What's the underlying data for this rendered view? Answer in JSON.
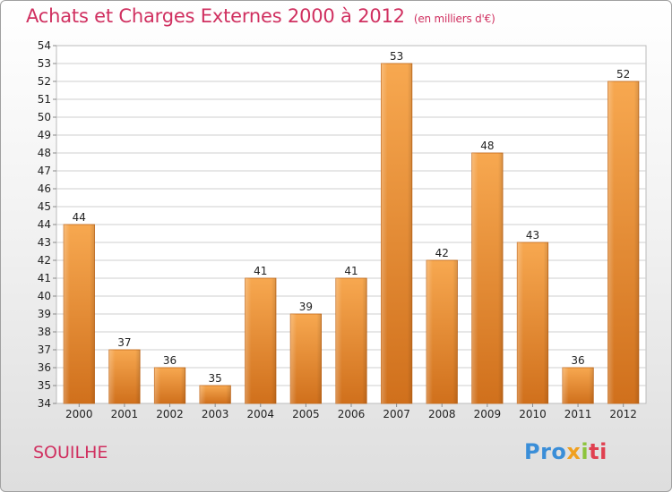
{
  "chart_data": {
    "type": "bar",
    "title": "Achats et Charges Externes 2000 à 2012",
    "subtitle": "(en milliers d'€)",
    "categories": [
      "2000",
      "2001",
      "2002",
      "2003",
      "2004",
      "2005",
      "2006",
      "2007",
      "2008",
      "2009",
      "2010",
      "2011",
      "2012"
    ],
    "values": [
      44,
      37,
      36,
      35,
      41,
      39,
      41,
      53,
      42,
      48,
      43,
      36,
      52
    ],
    "xlabel": "",
    "ylabel": "",
    "ylim": [
      34,
      54
    ],
    "ytick_step": 1,
    "grid": true,
    "bar_color": "#f08c28",
    "grid_color": "#cfcfcf",
    "title_color": "#d03060"
  },
  "footer": {
    "commune": "SOUILHE",
    "logo": {
      "p1": "Pro",
      "p2": "x",
      "p3": "i",
      "p4": "ti"
    }
  }
}
